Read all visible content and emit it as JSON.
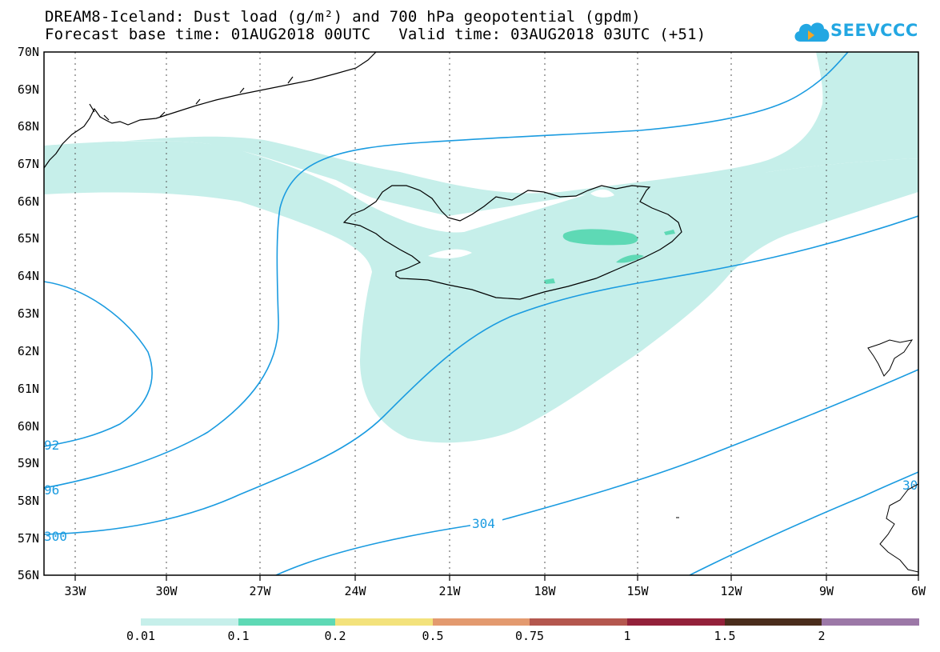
{
  "header": {
    "title_line1": "DREAM8-Iceland: Dust load (g/m²) and 700 hPa geopotential (gpdm)",
    "forecast_base": "Forecast base time: 01AUG2018 00UTC",
    "valid_time": "Valid time: 03AUG2018 03UTC (+51)"
  },
  "logo": {
    "text": "SEEVCCC",
    "color": "#23a7e2"
  },
  "map": {
    "lon_ticks": [
      "33W",
      "30W",
      "27W",
      "24W",
      "21W",
      "18W",
      "15W",
      "12W",
      "9W",
      "6W"
    ],
    "lat_ticks": [
      "70N",
      "69N",
      "68N",
      "67N",
      "66N",
      "65N",
      "64N",
      "63N",
      "62N",
      "61N",
      "60N",
      "59N",
      "58N",
      "57N",
      "56N"
    ],
    "extent": {
      "lon_min": -34.5,
      "lon_max": -6,
      "lat_min": 56,
      "lat_max": 70
    },
    "contour_color": "#1a9be0",
    "contour_labels": [
      "92",
      "96",
      "300",
      "304",
      "30"
    ],
    "dust_colors": {
      "light": "#c6efea",
      "medium": "#5ed9b5"
    }
  },
  "colorbar": {
    "labels": [
      "0.01",
      "0.1",
      "0.2",
      "0.5",
      "0.75",
      "1",
      "1.5",
      "2"
    ],
    "colors": [
      "#c6efea",
      "#5ed9b5",
      "#f3e27c",
      "#e39a6f",
      "#b4574e",
      "#93213a",
      "#4a2d1c",
      "#9c78a7"
    ]
  }
}
